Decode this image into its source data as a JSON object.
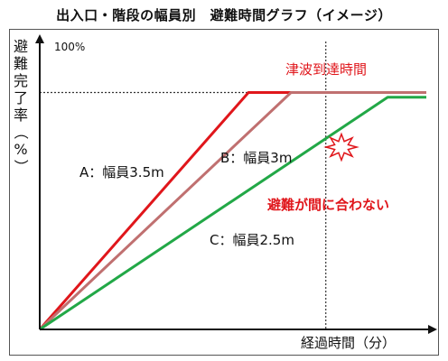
{
  "colors": {
    "series_a": "#e0161b",
    "series_b": "#c07070",
    "series_c": "#22a847",
    "annotation": "#e0161b",
    "axis": "#111111",
    "guide": "#333333"
  },
  "chart_data": {
    "type": "line",
    "title": "出入口・階段の幅員別　避難時間グラフ（イメージ）",
    "ylabel": "避難完了率（%）",
    "xlabel": "経過時間（分）",
    "ytick_label": "100%",
    "xlim": [
      0,
      10
    ],
    "ylim": [
      0,
      120
    ],
    "series": [
      {
        "name": "A：幅員3.5m",
        "color": "#e0161b",
        "points": [
          [
            0,
            0
          ],
          [
            5.4,
            100
          ],
          [
            10,
            100
          ]
        ]
      },
      {
        "name": "B：幅員3m",
        "color": "#c07070",
        "points": [
          [
            0,
            0
          ],
          [
            6.5,
            100
          ],
          [
            10,
            100
          ]
        ]
      },
      {
        "name": "C：幅員2.5m",
        "color": "#22a847",
        "points": [
          [
            0,
            0
          ],
          [
            9.0,
            98
          ],
          [
            10,
            98
          ]
        ]
      }
    ],
    "tsunami_time": 7.4,
    "annotations": {
      "tsunami": "津波到達時間",
      "too_late": "避難が間に合わない"
    }
  }
}
